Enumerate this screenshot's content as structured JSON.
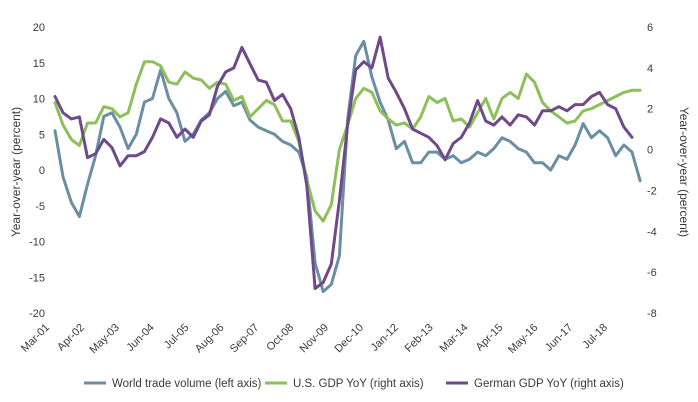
{
  "chart_data": {
    "type": "line",
    "x_tick_labels": [
      "Mar-01",
      "Apr-02",
      "May-03",
      "Jun-04",
      "Jul-05",
      "Aug-06",
      "Sep-07",
      "Oct-08",
      "Nov-09",
      "Dec-10",
      "Jan-12",
      "Feb-13",
      "Mar-14",
      "Apr-15",
      "May-16",
      "Jun-17",
      "Jul-18"
    ],
    "x_range": [
      "2001-03",
      "2018-12"
    ],
    "ylabel_left": "Year-over-year (percent)",
    "ylabel_right": "Year-over-year (percent)",
    "ylim_left": [
      -20,
      20
    ],
    "ylim_right": [
      -8,
      6
    ],
    "yticks_left": [
      -20,
      -15,
      -10,
      -5,
      0,
      5,
      10,
      15,
      20
    ],
    "yticks_right": [
      -8,
      -6,
      -4,
      -2,
      0,
      2,
      4,
      6
    ],
    "grid": false,
    "legend_position": "bottom",
    "series": [
      {
        "name": "World trade volume (left axis)",
        "axis": "left",
        "color": "#6a8fa3",
        "points": [
          [
            "2001-03",
            5.5
          ],
          [
            "2001-06",
            -1
          ],
          [
            "2001-09",
            -4.5
          ],
          [
            "2001-12",
            -6.5
          ],
          [
            "2002-03",
            -2
          ],
          [
            "2002-06",
            2
          ],
          [
            "2002-09",
            7.5
          ],
          [
            "2002-12",
            8
          ],
          [
            "2003-03",
            6
          ],
          [
            "2003-06",
            3
          ],
          [
            "2003-09",
            5
          ],
          [
            "2003-12",
            9.5
          ],
          [
            "2004-03",
            10
          ],
          [
            "2004-06",
            14
          ],
          [
            "2004-09",
            10
          ],
          [
            "2004-12",
            8
          ],
          [
            "2005-03",
            4
          ],
          [
            "2005-06",
            5
          ],
          [
            "2005-09",
            7
          ],
          [
            "2005-12",
            8
          ],
          [
            "2006-03",
            10
          ],
          [
            "2006-06",
            11
          ],
          [
            "2006-09",
            9
          ],
          [
            "2006-12",
            9.5
          ],
          [
            "2007-03",
            7
          ],
          [
            "2007-06",
            6
          ],
          [
            "2007-09",
            5.5
          ],
          [
            "2007-12",
            5
          ],
          [
            "2008-03",
            4
          ],
          [
            "2008-06",
            3.5
          ],
          [
            "2008-09",
            2.5
          ],
          [
            "2008-12",
            -1
          ],
          [
            "2009-03",
            -13
          ],
          [
            "2009-06",
            -17
          ],
          [
            "2009-09",
            -16
          ],
          [
            "2009-12",
            -12
          ],
          [
            "2010-03",
            7
          ],
          [
            "2010-06",
            16
          ],
          [
            "2010-09",
            18
          ],
          [
            "2010-12",
            13
          ],
          [
            "2011-03",
            9.5
          ],
          [
            "2011-06",
            7
          ],
          [
            "2011-09",
            3
          ],
          [
            "2011-12",
            4
          ],
          [
            "2012-03",
            1
          ],
          [
            "2012-06",
            1
          ],
          [
            "2012-09",
            2.5
          ],
          [
            "2012-12",
            2.5
          ],
          [
            "2013-03",
            1.5
          ],
          [
            "2013-06",
            2
          ],
          [
            "2013-09",
            1
          ],
          [
            "2013-12",
            1.5
          ],
          [
            "2014-03",
            2.5
          ],
          [
            "2014-06",
            2
          ],
          [
            "2014-09",
            3
          ],
          [
            "2014-12",
            4.5
          ],
          [
            "2015-03",
            4
          ],
          [
            "2015-06",
            3
          ],
          [
            "2015-09",
            2.5
          ],
          [
            "2015-12",
            1
          ],
          [
            "2016-03",
            1
          ],
          [
            "2016-06",
            0
          ],
          [
            "2016-09",
            2
          ],
          [
            "2016-12",
            1.5
          ],
          [
            "2017-03",
            3.5
          ],
          [
            "2017-06",
            6.5
          ],
          [
            "2017-09",
            4.5
          ],
          [
            "2017-12",
            5.5
          ],
          [
            "2018-03",
            4.5
          ],
          [
            "2018-06",
            2
          ],
          [
            "2018-09",
            3.5
          ],
          [
            "2018-12",
            2.5
          ],
          [
            "2019-03",
            -1.5
          ]
        ]
      },
      {
        "name": "U.S. GDP YoY (right axis)",
        "axis": "right",
        "color": "#8dc05a",
        "points": [
          [
            "2001-03",
            2.3
          ],
          [
            "2001-06",
            1.2
          ],
          [
            "2001-09",
            0.5
          ],
          [
            "2001-12",
            0.2
          ],
          [
            "2002-03",
            1.3
          ],
          [
            "2002-06",
            1.3
          ],
          [
            "2002-09",
            2.1
          ],
          [
            "2002-12",
            2.0
          ],
          [
            "2003-03",
            1.6
          ],
          [
            "2003-06",
            1.8
          ],
          [
            "2003-09",
            3.2
          ],
          [
            "2003-12",
            4.3
          ],
          [
            "2004-03",
            4.3
          ],
          [
            "2004-06",
            4.1
          ],
          [
            "2004-09",
            3.3
          ],
          [
            "2004-12",
            3.2
          ],
          [
            "2005-03",
            3.8
          ],
          [
            "2005-06",
            3.5
          ],
          [
            "2005-09",
            3.4
          ],
          [
            "2005-12",
            3.0
          ],
          [
            "2006-03",
            3.3
          ],
          [
            "2006-06",
            3.2
          ],
          [
            "2006-09",
            2.4
          ],
          [
            "2006-12",
            2.6
          ],
          [
            "2007-03",
            1.6
          ],
          [
            "2007-06",
            2.0
          ],
          [
            "2007-09",
            2.4
          ],
          [
            "2007-12",
            2.2
          ],
          [
            "2008-03",
            1.4
          ],
          [
            "2008-06",
            1.4
          ],
          [
            "2008-09",
            0.4
          ],
          [
            "2008-12",
            -1.5
          ],
          [
            "2009-03",
            -3.0
          ],
          [
            "2009-06",
            -3.5
          ],
          [
            "2009-09",
            -2.7
          ],
          [
            "2009-12",
            0.0
          ],
          [
            "2010-03",
            1.2
          ],
          [
            "2010-06",
            2.5
          ],
          [
            "2010-09",
            3.0
          ],
          [
            "2010-12",
            2.8
          ],
          [
            "2011-03",
            1.9
          ],
          [
            "2011-06",
            1.5
          ],
          [
            "2011-09",
            1.2
          ],
          [
            "2011-12",
            1.3
          ],
          [
            "2012-03",
            1.0
          ],
          [
            "2012-06",
            1.6
          ],
          [
            "2012-09",
            2.6
          ],
          [
            "2012-12",
            2.3
          ],
          [
            "2013-03",
            2.5
          ],
          [
            "2013-06",
            1.4
          ],
          [
            "2013-09",
            1.5
          ],
          [
            "2013-12",
            1.1
          ],
          [
            "2014-03",
            1.8
          ],
          [
            "2014-06",
            2.5
          ],
          [
            "2014-09",
            1.5
          ],
          [
            "2014-12",
            2.5
          ],
          [
            "2015-03",
            2.8
          ],
          [
            "2015-06",
            2.5
          ],
          [
            "2015-09",
            3.7
          ],
          [
            "2015-12",
            3.3
          ],
          [
            "2016-03",
            2.3
          ],
          [
            "2016-06",
            1.9
          ],
          [
            "2016-09",
            1.6
          ],
          [
            "2016-12",
            1.3
          ],
          [
            "2017-03",
            1.4
          ],
          [
            "2017-06",
            1.9
          ],
          [
            "2017-09",
            2.0
          ],
          [
            "2017-12",
            2.2
          ],
          [
            "2018-03",
            2.4
          ],
          [
            "2018-06",
            2.6
          ],
          [
            "2018-09",
            2.8
          ],
          [
            "2018-12",
            2.9
          ],
          [
            "2019-03",
            2.9
          ]
        ]
      },
      {
        "name": "German GDP YoY (right axis)",
        "axis": "right",
        "color": "#6e4a89",
        "points": [
          [
            "2001-03",
            2.6
          ],
          [
            "2001-06",
            1.8
          ],
          [
            "2001-09",
            1.5
          ],
          [
            "2001-12",
            1.6
          ],
          [
            "2002-03",
            -0.4
          ],
          [
            "2002-06",
            -0.2
          ],
          [
            "2002-09",
            0.5
          ],
          [
            "2002-12",
            0.1
          ],
          [
            "2003-03",
            -0.8
          ],
          [
            "2003-06",
            -0.3
          ],
          [
            "2003-09",
            -0.3
          ],
          [
            "2003-12",
            -0.1
          ],
          [
            "2004-03",
            0.6
          ],
          [
            "2004-06",
            1.5
          ],
          [
            "2004-09",
            1.3
          ],
          [
            "2004-12",
            0.6
          ],
          [
            "2005-03",
            1.0
          ],
          [
            "2005-06",
            0.6
          ],
          [
            "2005-09",
            1.4
          ],
          [
            "2005-12",
            1.7
          ],
          [
            "2006-03",
            3.1
          ],
          [
            "2006-06",
            3.8
          ],
          [
            "2006-09",
            4.0
          ],
          [
            "2006-12",
            5.0
          ],
          [
            "2007-03",
            4.2
          ],
          [
            "2007-06",
            3.4
          ],
          [
            "2007-09",
            3.3
          ],
          [
            "2007-12",
            2.4
          ],
          [
            "2008-03",
            2.7
          ],
          [
            "2008-06",
            2.0
          ],
          [
            "2008-09",
            0.6
          ],
          [
            "2008-12",
            -1.8
          ],
          [
            "2009-03",
            -6.8
          ],
          [
            "2009-06",
            -6.5
          ],
          [
            "2009-09",
            -5.6
          ],
          [
            "2009-12",
            -2.5
          ],
          [
            "2010-03",
            1.2
          ],
          [
            "2010-06",
            3.9
          ],
          [
            "2010-09",
            4.3
          ],
          [
            "2010-12",
            4.0
          ],
          [
            "2011-03",
            5.5
          ],
          [
            "2011-06",
            3.5
          ],
          [
            "2011-09",
            2.8
          ],
          [
            "2011-12",
            2.0
          ],
          [
            "2012-03",
            1.0
          ],
          [
            "2012-06",
            0.8
          ],
          [
            "2012-09",
            0.6
          ],
          [
            "2012-12",
            0.2
          ],
          [
            "2013-03",
            -0.5
          ],
          [
            "2013-06",
            0.3
          ],
          [
            "2013-09",
            0.6
          ],
          [
            "2013-12",
            1.3
          ],
          [
            "2014-03",
            2.4
          ],
          [
            "2014-06",
            1.4
          ],
          [
            "2014-09",
            1.2
          ],
          [
            "2014-12",
            1.6
          ],
          [
            "2015-03",
            1.2
          ],
          [
            "2015-06",
            1.7
          ],
          [
            "2015-09",
            1.6
          ],
          [
            "2015-12",
            1.2
          ],
          [
            "2016-03",
            1.9
          ],
          [
            "2016-06",
            1.9
          ],
          [
            "2016-09",
            2.1
          ],
          [
            "2016-12",
            1.9
          ],
          [
            "2017-03",
            2.2
          ],
          [
            "2017-06",
            2.2
          ],
          [
            "2017-09",
            2.6
          ],
          [
            "2017-12",
            2.8
          ],
          [
            "2018-03",
            2.2
          ],
          [
            "2018-06",
            2.0
          ],
          [
            "2018-09",
            1.1
          ],
          [
            "2018-12",
            0.6
          ]
        ]
      }
    ]
  }
}
